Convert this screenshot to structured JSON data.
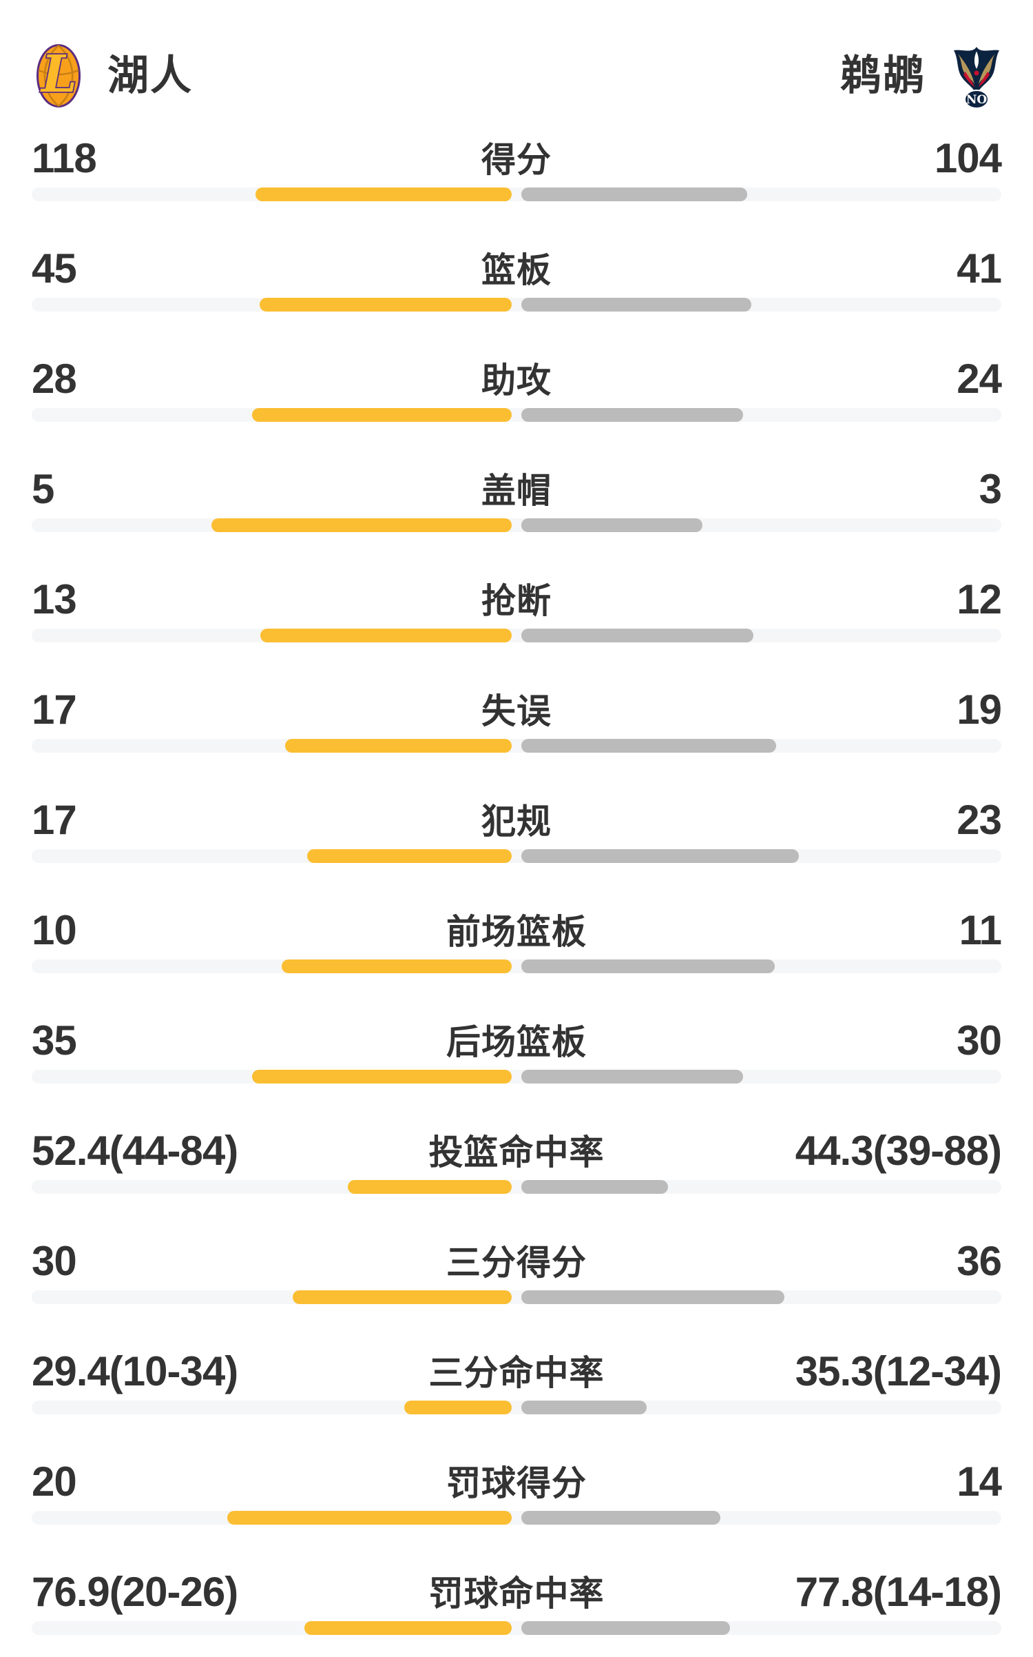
{
  "header": {
    "home_team": {
      "name": "湖人",
      "logo_letter": "L"
    },
    "away_team": {
      "name": "鹈鹕",
      "logo_badge": "NO"
    }
  },
  "colors": {
    "home_bar": "#FBBE32",
    "away_bar": "#BBBBBB",
    "track": "#F5F6F8",
    "text": "#333333",
    "lakers_purple": "#5A2D81",
    "lakers_gold": "#FDB927",
    "lakers_orange": "#F8A01B",
    "pelicans_navy": "#0C2340",
    "pelicans_gold": "#B4975A",
    "pelicans_red": "#C8102E"
  },
  "chart_data": {
    "type": "bar",
    "legend": [
      "湖人",
      "鹈鹕"
    ],
    "stats": [
      {
        "label": "得分",
        "home": "118",
        "away": "104",
        "home_bar_pct": 26.4,
        "away_bar_pct": 23.3
      },
      {
        "label": "篮板",
        "home": "45",
        "away": "41",
        "home_bar_pct": 26.0,
        "away_bar_pct": 23.7
      },
      {
        "label": "助攻",
        "home": "28",
        "away": "24",
        "home_bar_pct": 26.8,
        "away_bar_pct": 22.9
      },
      {
        "label": "盖帽",
        "home": "5",
        "away": "3",
        "home_bar_pct": 31.0,
        "away_bar_pct": 18.7
      },
      {
        "label": "抢断",
        "home": "13",
        "away": "12",
        "home_bar_pct": 25.9,
        "away_bar_pct": 23.9
      },
      {
        "label": "失误",
        "home": "17",
        "away": "19",
        "home_bar_pct": 23.4,
        "away_bar_pct": 26.3
      },
      {
        "label": "犯规",
        "home": "17",
        "away": "23",
        "home_bar_pct": 21.1,
        "away_bar_pct": 28.6
      },
      {
        "label": "前场篮板",
        "home": "10",
        "away": "11",
        "home_bar_pct": 23.7,
        "away_bar_pct": 26.1
      },
      {
        "label": "后场篮板",
        "home": "35",
        "away": "30",
        "home_bar_pct": 26.8,
        "away_bar_pct": 22.9
      },
      {
        "label": "投篮命中率",
        "home": "52.4(44-84)",
        "away": "44.3(39-88)",
        "home_bar_pct": 16.9,
        "away_bar_pct": 15.1
      },
      {
        "label": "三分得分",
        "home": "30",
        "away": "36",
        "home_bar_pct": 22.6,
        "away_bar_pct": 27.1
      },
      {
        "label": "三分命中率",
        "home": "29.4(10-34)",
        "away": "35.3(12-34)",
        "home_bar_pct": 11.1,
        "away_bar_pct": 12.9
      },
      {
        "label": "罚球得分",
        "home": "20",
        "away": "14",
        "home_bar_pct": 29.3,
        "away_bar_pct": 20.5
      },
      {
        "label": "罚球命中率",
        "home": "76.9(20-26)",
        "away": "77.8(14-18)",
        "home_bar_pct": 21.4,
        "away_bar_pct": 21.5
      }
    ]
  }
}
